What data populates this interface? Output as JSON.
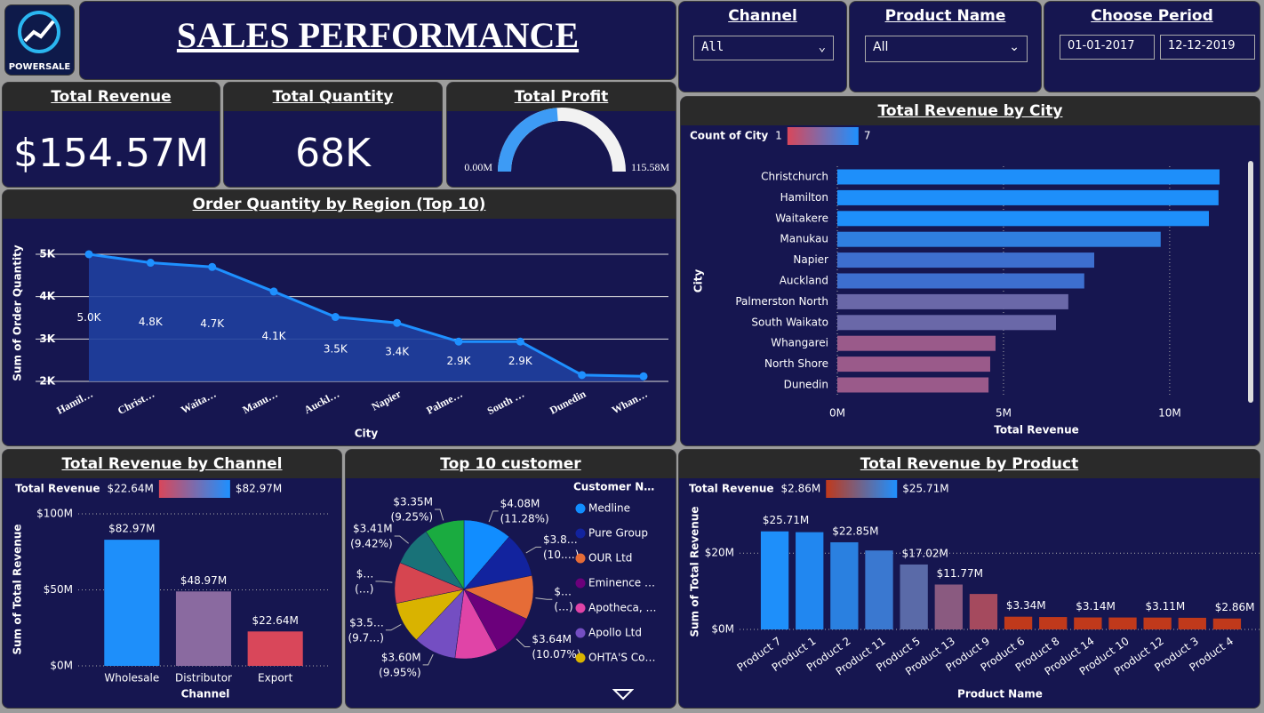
{
  "header": {
    "title": "SALES PERFORMANCE",
    "logo": "POWERSALE"
  },
  "filters": [
    {
      "label": "Channel",
      "value": "All"
    },
    {
      "label": "Product Name",
      "value": "All"
    },
    {
      "label": "Choose Period",
      "start": "01-01-2017",
      "end": "12-12-2019"
    }
  ],
  "kpis": [
    {
      "title": "Total Revenue",
      "value": "$154.57M"
    },
    {
      "title": "Total Quantity",
      "value": "68K"
    }
  ],
  "chart_data": [
    {
      "type": "gauge",
      "title": "Total Profit",
      "value": 55,
      "range": [
        {
          "value": 0,
          "label": "0.00M"
        },
        {
          "value": 115.58,
          "label": "115.58M"
        }
      ],
      "color": "#3d9bf5",
      "track_color": "#f2f2f2"
    },
    {
      "type": "line",
      "title": "Order Quantity by Region (Top 10)",
      "x_label": "City",
      "y_label": "Sum of Order Quantity",
      "categories": [
        "Hamil…",
        "Christ…",
        "Waita…",
        "Manu…",
        "Auckl…",
        "Napier",
        "Palme…",
        "South …",
        "Dunedin",
        "Whan…"
      ],
      "values": [
        5000,
        4800,
        4700,
        4120,
        3520,
        3380,
        2940,
        2940,
        2150,
        2120
      ],
      "value_labels": [
        "5.0K",
        "4.8K",
        "4.7K",
        "4.1K",
        "3.5K",
        "3.4K",
        "2.9K",
        "2.9K",
        null,
        null
      ],
      "ylim": [
        2000,
        5650
      ],
      "yticks": [
        {
          "value": 2000,
          "label": "2K"
        },
        {
          "value": 3000,
          "label": "3K"
        },
        {
          "value": 4000,
          "label": "4K"
        },
        {
          "value": 5000,
          "label": "5K"
        }
      ],
      "color": "#1e90ff",
      "area_color": "#1f3f9e",
      "grid": true
    },
    {
      "type": "hbar",
      "title": "Total Revenue by City",
      "x_label": "Total Revenue",
      "y_label": "City",
      "legend_title": "Count of City",
      "legend_min": "1",
      "legend_max": "7",
      "legend_colors": [
        "#d9475a",
        "#1e90ff"
      ],
      "categories": [
        "Christchurch",
        "Hamilton",
        "Waitakere",
        "Manukau",
        "Napier",
        "Auckland",
        "Palmerston North",
        "South Waikato",
        "Whangarei",
        "North Shore",
        "Dunedin"
      ],
      "values": [
        11.5,
        11.47,
        11.18,
        9.73,
        7.73,
        7.43,
        6.95,
        6.58,
        4.76,
        4.6,
        4.55
      ],
      "colors": [
        "#1e8ffa",
        "#1e8ffa",
        "#1e8ffa",
        "#2f7fe0",
        "#3d6fcf",
        "#3d6fcf",
        "#6a68a8",
        "#6a68a8",
        "#9a5a8a",
        "#9a5a8a",
        "#9a5a8a"
      ],
      "xlim": [
        0,
        12.25
      ],
      "xticks": [
        {
          "value": 0,
          "label": "0M"
        },
        {
          "value": 5,
          "label": "5M"
        },
        {
          "value": 10,
          "label": "10M"
        }
      ],
      "grid": true
    },
    {
      "type": "bar",
      "title": "Total Revenue by Channel",
      "x_label": "Channel",
      "y_label": "Sum of Total Revenue",
      "legend_title": "Total Revenue",
      "legend_min": "$22.64M",
      "legend_max": "$82.97M",
      "legend_colors": [
        "#d9475a",
        "#1e90ff"
      ],
      "categories": [
        "Wholesale",
        "Distributor",
        "Export"
      ],
      "values": [
        82.97,
        48.97,
        22.64
      ],
      "value_labels": [
        "$82.97M",
        "$48.97M",
        "$22.64M"
      ],
      "colors": [
        "#1e8ffa",
        "#8a6aa0",
        "#d9475a"
      ],
      "ylim": [
        0,
        100
      ],
      "yticks": [
        {
          "value": 0,
          "label": "$0M"
        },
        {
          "value": 50,
          "label": "$50M"
        },
        {
          "value": 100,
          "label": "$100M"
        }
      ],
      "grid": true
    },
    {
      "type": "pie",
      "title": "Top 10 customer",
      "legend_title": "Customer N…",
      "categories": [
        "Medline",
        "Pure Group",
        "OUR Ltd",
        "Eminence …",
        "Apotheca, …",
        "Apollo Ltd",
        "OHTA'S Co…",
        null,
        null,
        null
      ],
      "values": [
        4.08,
        3.8,
        3.7,
        3.64,
        3.62,
        3.6,
        3.52,
        3.45,
        3.41,
        3.35
      ],
      "value_labels": [
        "$4.08M",
        "$3.8…",
        "$…",
        "$3.64M",
        null,
        "$3.60M",
        "$3.5…",
        "$…",
        "$3.41M",
        "$3.35M"
      ],
      "percent_labels": [
        "(11.28%)",
        "(10.…)",
        "(…)",
        "(10.07%)",
        null,
        "(9.95%)",
        "(9.7…)",
        "(…)",
        "(9.42%)",
        "(9.25%)"
      ],
      "colors": [
        "#118dff",
        "#12239e",
        "#e66c37",
        "#6b007b",
        "#e044a7",
        "#744ec2",
        "#d9b300",
        "#d64550",
        "#197278",
        "#1aab40"
      ]
    },
    {
      "type": "bar",
      "title": "Total Revenue by Product",
      "x_label": "Product Name",
      "y_label": "Sum of Total Revenue",
      "legend_title": "Total Revenue",
      "legend_min": "$2.86M",
      "legend_max": "$25.71M",
      "legend_colors": [
        "#c0391b",
        "#1e90ff"
      ],
      "categories": [
        "Product 7",
        "Product 1",
        "Product 2",
        "Product 11",
        "Product 5",
        "Product 13",
        "Product 9",
        "Product 6",
        "Product 8",
        "Product 14",
        "Product 10",
        "Product 12",
        "Product 3",
        "Product 4"
      ],
      "values": [
        25.71,
        25.5,
        22.85,
        20.7,
        17.02,
        11.77,
        9.3,
        3.34,
        3.25,
        3.14,
        3.13,
        3.11,
        3.05,
        2.86
      ],
      "value_labels": [
        "$25.71M",
        null,
        "$22.85M",
        null,
        "$17.02M",
        "$11.77M",
        null,
        "$3.34M",
        null,
        "$3.14M",
        null,
        "$3.11M",
        null,
        "$2.86M"
      ],
      "colors": [
        "#1e8ffa",
        "#2187f0",
        "#2a80e0",
        "#3a78d0",
        "#5a6aa8",
        "#8a5a80",
        "#a54a5e",
        "#c0391b",
        "#c0391b",
        "#c0391b",
        "#c0391b",
        "#c0391b",
        "#c0391b",
        "#c0391b"
      ],
      "ylim": [
        0,
        31
      ],
      "yticks": [
        {
          "value": 0,
          "label": "$0M"
        },
        {
          "value": 20,
          "label": "$20M"
        }
      ],
      "grid": true
    }
  ]
}
